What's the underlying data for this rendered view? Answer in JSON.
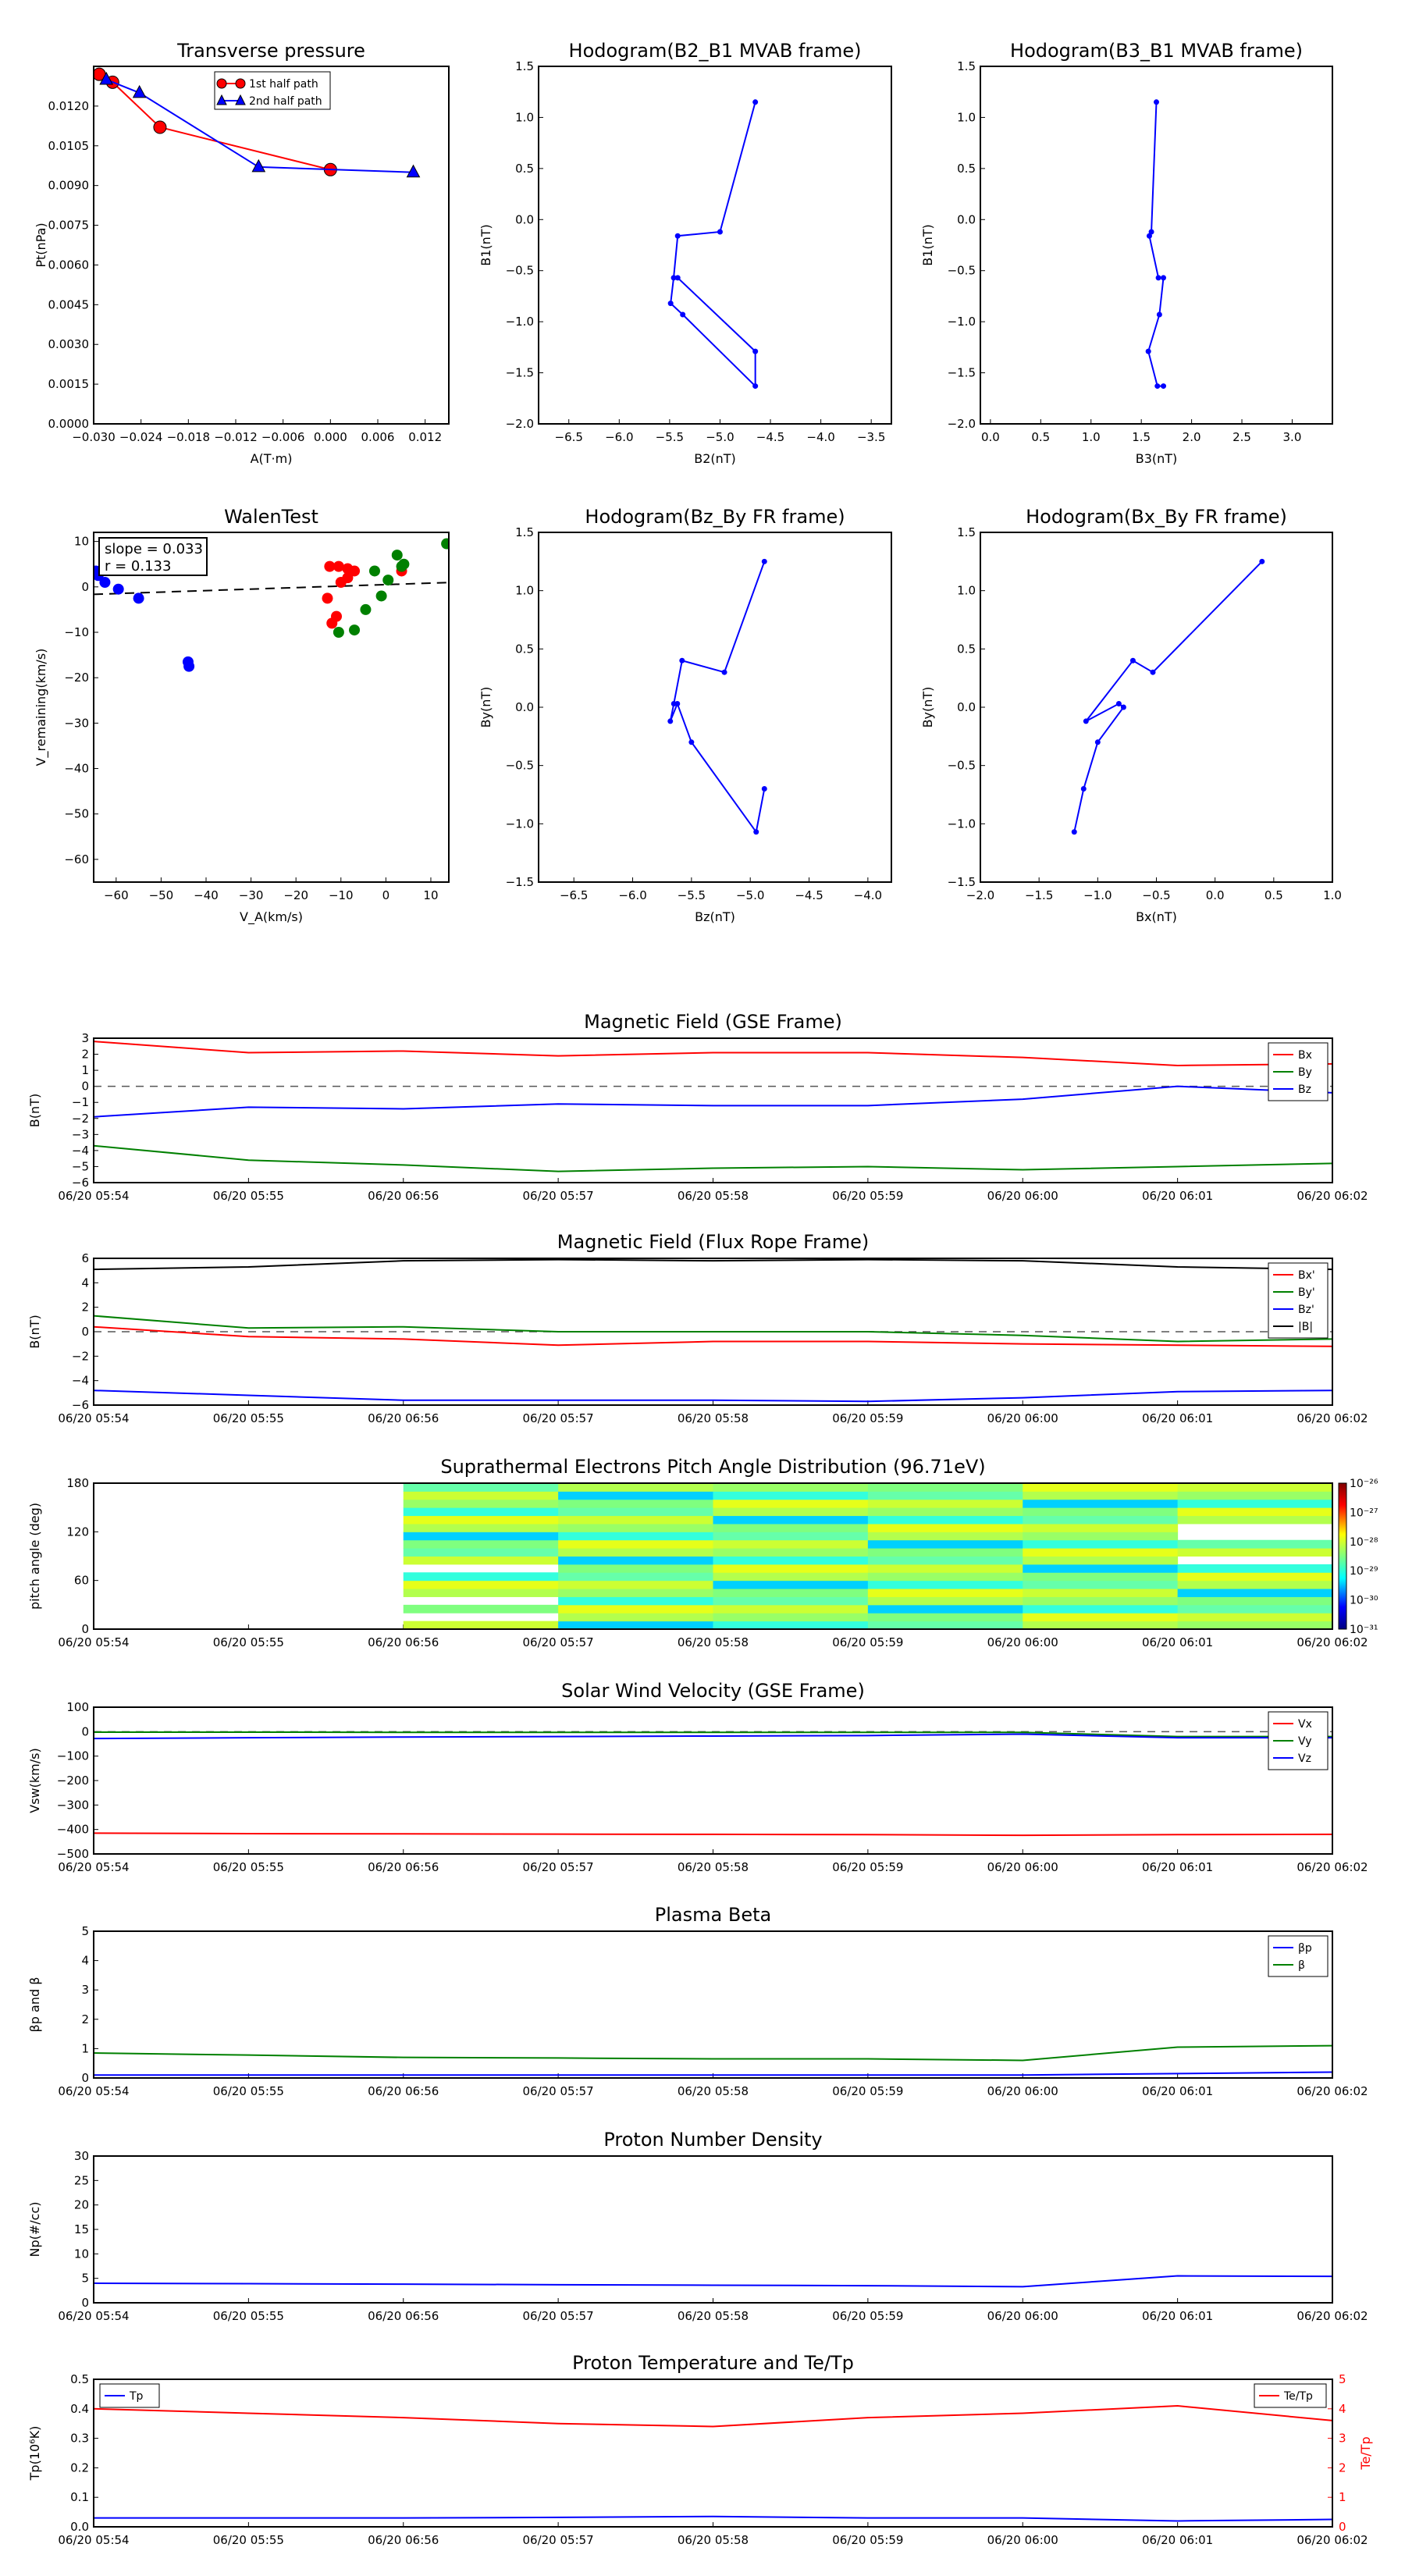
{
  "panels": [
    {
      "id": "tp",
      "title": "Transverse pressure",
      "xlabel": "A(T·m)",
      "ylabel": "Pt(nPa)",
      "xticks": [
        "−0.030",
        "−0.024",
        "−0.018",
        "−0.012",
        "−0.006",
        "0.000",
        "0.006",
        "0.012"
      ],
      "yticks": [
        "0.0000",
        "0.0015",
        "0.0030",
        "0.0045",
        "0.0060",
        "0.0075",
        "0.0090",
        "0.0105",
        "0.0120"
      ]
    },
    {
      "id": "h1",
      "title": "Hodogram(B2_B1 MVAB frame)",
      "xlabel": "B2(nT)",
      "ylabel": "B1(nT)",
      "xticks": [
        "−6.5",
        "−6.0",
        "−5.5",
        "−5.0",
        "−4.5",
        "−4.0",
        "−3.5"
      ],
      "yticks": [
        "−2.0",
        "−1.5",
        "−1.0",
        "−0.5",
        "0.0",
        "0.5",
        "1.0",
        "1.5"
      ]
    },
    {
      "id": "h2",
      "title": "Hodogram(B3_B1 MVAB frame)",
      "xlabel": "B3(nT)",
      "ylabel": "B1(nT)",
      "xticks": [
        "0.0",
        "0.5",
        "1.0",
        "1.5",
        "2.0",
        "2.5",
        "3.0"
      ],
      "yticks": [
        "−2.0",
        "−1.5",
        "−1.0",
        "−0.5",
        "0.0",
        "0.5",
        "1.0",
        "1.5"
      ]
    },
    {
      "id": "walen",
      "title": "WalenTest",
      "xlabel": "V_A(km/s)",
      "ylabel": "V_remaining(km/s)",
      "xticks": [
        "−60",
        "−50",
        "−40",
        "−30",
        "−20",
        "−10",
        "0",
        "10"
      ],
      "yticks": [
        "−60",
        "−50",
        "−40",
        "−30",
        "−20",
        "−10",
        "0",
        "10"
      ],
      "annotation": [
        "slope = 0.033",
        "r = 0.133"
      ]
    },
    {
      "id": "h3",
      "title": "Hodogram(Bz_By FR frame)",
      "xlabel": "Bz(nT)",
      "ylabel": "By(nT)",
      "xticks": [
        "−6.5",
        "−6.0",
        "−5.5",
        "−5.0",
        "−4.5",
        "−4.0"
      ],
      "yticks": [
        "−1.5",
        "−1.0",
        "−0.5",
        "0.0",
        "0.5",
        "1.0",
        "1.5"
      ]
    },
    {
      "id": "h4",
      "title": "Hodogram(Bx_By FR frame)",
      "xlabel": "Bx(nT)",
      "ylabel": "By(nT)",
      "xticks": [
        "−2.0",
        "−1.5",
        "−1.0",
        "−0.5",
        "0.0",
        "0.5",
        "1.0"
      ],
      "yticks": [
        "−1.5",
        "−1.0",
        "−0.5",
        "0.0",
        "0.5",
        "1.0",
        "1.5"
      ]
    },
    {
      "id": "bgse",
      "title": "Magnetic Field (GSE Frame)",
      "ylabel": "B(nT)",
      "yticks": [
        "−6",
        "−5",
        "−4",
        "−3",
        "−2",
        "−1",
        "0",
        "1",
        "2",
        "3"
      ],
      "legend": [
        "Bx",
        "By",
        "Bz"
      ]
    },
    {
      "id": "bfr",
      "title": "Magnetic Field (Flux Rope Frame)",
      "ylabel": "B(nT)",
      "yticks": [
        "−6",
        "−4",
        "−2",
        "0",
        "2",
        "4",
        "6"
      ],
      "legend": [
        "Bx'",
        "By'",
        "Bz'",
        "|B|"
      ]
    },
    {
      "id": "pad",
      "title": "Suprathermal Electrons Pitch Angle Distribution (96.71eV)",
      "ylabel": "pitch angle (deg)",
      "yticks": [
        "0",
        "60",
        "120",
        "180"
      ],
      "cbticks": [
        "10⁻³¹",
        "10⁻³⁰",
        "10⁻²⁹",
        "10⁻²⁸",
        "10⁻²⁷",
        "10⁻²⁶"
      ]
    },
    {
      "id": "vsw",
      "title": "Solar Wind Velocity (GSE Frame)",
      "ylabel": "Vsw(km/s)",
      "yticks": [
        "−500",
        "−400",
        "−300",
        "−200",
        "−100",
        "0",
        "100"
      ],
      "legend": [
        "Vx",
        "Vy",
        "Vz"
      ]
    },
    {
      "id": "beta",
      "title": "Plasma Beta",
      "ylabel": "βp and β",
      "yticks": [
        "0",
        "1",
        "2",
        "3",
        "4",
        "5"
      ],
      "legend": [
        "βp",
        "β"
      ]
    },
    {
      "id": "np",
      "title": "Proton Number Density",
      "ylabel": "Np(#/cc)",
      "yticks": [
        "0",
        "5",
        "10",
        "15",
        "20",
        "25",
        "30"
      ]
    },
    {
      "id": "temp",
      "title": "Proton Temperature and Te/Tp",
      "ylabel": "Tp(10⁶K)",
      "ylabel2": "Te/Tp",
      "yticks": [
        "0.0",
        "0.1",
        "0.2",
        "0.3",
        "0.4",
        "0.5"
      ],
      "yticks2": [
        "0",
        "1",
        "2",
        "3",
        "4",
        "5"
      ],
      "legend": [
        "Tp"
      ],
      "legend2": [
        "Te/Tp"
      ]
    }
  ],
  "time_ticks": [
    "06/20 05:54",
    "06/20 05:55",
    "06/20 06:56",
    "06/20 05:57",
    "06/20 05:58",
    "06/20 05:59",
    "06/20 06:00",
    "06/20 06:01",
    "06/20 06:02"
  ],
  "colors": {
    "red": "#ff0000",
    "green": "#008000",
    "blue": "#0000ff",
    "black": "#000000"
  },
  "chart_data": [
    {
      "type": "line",
      "title": "Transverse pressure",
      "xlim": [
        -0.03,
        0.015
      ],
      "ylim": [
        0,
        0.0135
      ],
      "series": [
        {
          "name": "1st half path",
          "x": [
            -0.0293,
            -0.0276,
            -0.0216,
            0.0
          ],
          "y": [
            0.0132,
            0.0129,
            0.0112,
            0.0096
          ]
        },
        {
          "name": "2nd half path",
          "x": [
            -0.0284,
            -0.0242,
            -0.0091,
            0.0105
          ],
          "y": [
            0.013,
            0.0125,
            0.0097,
            0.0095
          ]
        }
      ]
    },
    {
      "type": "line",
      "title": "Hodogram(B2_B1 MVAB frame)",
      "xlim": [
        -6.8,
        -3.3
      ],
      "ylim": [
        -2,
        1.5
      ],
      "series": [
        {
          "x": [
            -4.65,
            -5.0,
            -5.42,
            -5.46,
            -5.49,
            -5.37,
            -4.65,
            -4.65,
            -5.42
          ],
          "y": [
            1.15,
            -0.12,
            -0.16,
            -0.57,
            -0.82,
            -0.93,
            -1.63,
            -1.29,
            -0.57
          ]
        }
      ]
    },
    {
      "type": "line",
      "title": "Hodogram(B3_B1 MVAB frame)",
      "xlim": [
        -0.1,
        3.4
      ],
      "ylim": [
        -2,
        1.5
      ],
      "series": [
        {
          "x": [
            1.65,
            1.6,
            1.58,
            1.67,
            1.72,
            1.68,
            1.57,
            1.66,
            1.72
          ],
          "y": [
            1.15,
            -0.12,
            -0.16,
            -0.57,
            -0.57,
            -0.93,
            -1.29,
            -1.63,
            -1.63
          ]
        }
      ]
    },
    {
      "type": "scatter",
      "title": "WalenTest",
      "xlim": [
        -65,
        14
      ],
      "ylim": [
        -65,
        12
      ],
      "fit": {
        "slope": 0.033,
        "intercept": 0.5
      },
      "series": [
        {
          "x": [
            -64.5,
            -64,
            -62.5,
            -59.5,
            -55,
            -44,
            -43.8
          ],
          "y": [
            3.5,
            2.5,
            1,
            -0.5,
            -2.5,
            -16.5,
            -17.5
          ],
          "color": "#0000ff"
        },
        {
          "x": [
            -12.5,
            -10.5,
            -8.5,
            -7,
            -13,
            -11,
            -12,
            -10,
            -8.5,
            3.5
          ],
          "y": [
            4.5,
            4.5,
            4,
            3.5,
            -2.5,
            -6.5,
            -8,
            1,
            2,
            3.5
          ],
          "color": "#ff0000"
        },
        {
          "x": [
            -10.5,
            -7,
            -4.5,
            -2.5,
            -1,
            0.5,
            2.5,
            3.5,
            4,
            13.5
          ],
          "y": [
            -10,
            -9.5,
            -5,
            3.5,
            -2,
            1.5,
            7,
            4.5,
            5,
            9.5
          ],
          "color": "#008000"
        }
      ]
    },
    {
      "type": "line",
      "title": "Hodogram(Bz_By FR frame)",
      "xlim": [
        -6.8,
        -3.8
      ],
      "ylim": [
        -1.5,
        1.5
      ],
      "series": [
        {
          "x": [
            -4.88,
            -5.22,
            -5.58,
            -5.65,
            -5.68,
            -5.62,
            -5.5,
            -4.95,
            -4.88
          ],
          "y": [
            1.25,
            0.3,
            0.4,
            0.03,
            -0.12,
            0.03,
            -0.3,
            -1.07,
            -0.7
          ]
        }
      ]
    },
    {
      "type": "line",
      "title": "Hodogram(Bx_By FR frame)",
      "xlim": [
        -2,
        1
      ],
      "ylim": [
        -1.5,
        1.5
      ],
      "series": [
        {
          "x": [
            0.4,
            -0.53,
            -0.7,
            -1.1,
            -0.82,
            -0.78,
            -1.0,
            -1.12,
            -1.2
          ],
          "y": [
            1.25,
            0.3,
            0.4,
            -0.12,
            0.03,
            0.0,
            -0.3,
            -0.7,
            -1.07
          ]
        }
      ]
    },
    {
      "type": "line",
      "title": "Magnetic Field (GSE Frame)",
      "ylim": [
        -6,
        3
      ],
      "series": [
        {
          "name": "Bx",
          "values": [
            2.8,
            2.1,
            2.2,
            1.9,
            2.1,
            2.1,
            1.8,
            1.3,
            1.4
          ]
        },
        {
          "name": "By",
          "values": [
            -3.7,
            -4.6,
            -4.9,
            -5.3,
            -5.1,
            -5.0,
            -5.2,
            -5.0,
            -4.8
          ]
        },
        {
          "name": "Bz",
          "values": [
            -1.9,
            -1.3,
            -1.4,
            -1.1,
            -1.2,
            -1.2,
            -0.8,
            0.0,
            -0.4
          ]
        }
      ]
    },
    {
      "type": "line",
      "title": "Magnetic Field (Flux Rope Frame)",
      "ylim": [
        -6,
        6
      ],
      "series": [
        {
          "name": "Bx'",
          "values": [
            0.4,
            -0.4,
            -0.6,
            -1.1,
            -0.8,
            -0.8,
            -1.0,
            -1.1,
            -1.2
          ]
        },
        {
          "name": "By'",
          "values": [
            1.3,
            0.3,
            0.4,
            0.0,
            0.0,
            0.0,
            -0.3,
            -0.8,
            -0.6
          ]
        },
        {
          "name": "Bz'",
          "values": [
            -4.8,
            -5.2,
            -5.6,
            -5.6,
            -5.6,
            -5.7,
            -5.4,
            -4.9,
            -4.8
          ]
        },
        {
          "name": "|B|",
          "values": [
            5.1,
            5.3,
            5.8,
            5.9,
            5.8,
            5.9,
            5.8,
            5.3,
            5.1
          ]
        }
      ]
    },
    {
      "type": "heatmap",
      "title": "Suprathermal Electrons Pitch Angle Distribution (96.71eV)",
      "ylim": [
        0,
        180
      ]
    },
    {
      "type": "line",
      "title": "Solar Wind Velocity (GSE Frame)",
      "ylim": [
        -500,
        100
      ],
      "series": [
        {
          "name": "Vx",
          "values": [
            -415,
            -417,
            -418,
            -419,
            -420,
            -421,
            -424,
            -421,
            -420
          ]
        },
        {
          "name": "Vy",
          "values": [
            -2,
            -2,
            -3,
            -3,
            -3,
            -3,
            -3,
            -20,
            -20
          ]
        },
        {
          "name": "Vz",
          "values": [
            -28,
            -25,
            -22,
            -20,
            -18,
            -16,
            -10,
            -25,
            -25
          ]
        }
      ]
    },
    {
      "type": "line",
      "title": "Plasma Beta",
      "ylim": [
        0,
        5
      ],
      "series": [
        {
          "name": "βp",
          "values": [
            0.1,
            0.1,
            0.1,
            0.1,
            0.1,
            0.1,
            0.1,
            0.15,
            0.2
          ]
        },
        {
          "name": "β",
          "values": [
            0.85,
            0.78,
            0.7,
            0.68,
            0.65,
            0.65,
            0.6,
            1.05,
            1.1
          ]
        }
      ]
    },
    {
      "type": "line",
      "title": "Proton Number Density",
      "ylim": [
        0,
        30
      ],
      "series": [
        {
          "name": "Np",
          "values": [
            4.0,
            3.9,
            3.8,
            3.7,
            3.6,
            3.5,
            3.3,
            5.5,
            5.4
          ]
        }
      ]
    },
    {
      "type": "line",
      "title": "Proton Temperature and Te/Tp",
      "ylim": [
        0,
        0.5
      ],
      "ylim2": [
        0,
        5
      ],
      "series": [
        {
          "name": "Tp",
          "values": [
            0.03,
            0.03,
            0.03,
            0.032,
            0.035,
            0.03,
            0.03,
            0.02,
            0.025
          ]
        },
        {
          "name": "Te/Tp",
          "axis": "right",
          "values": [
            4.0,
            3.85,
            3.7,
            3.5,
            3.4,
            3.7,
            3.85,
            4.1,
            3.6
          ]
        }
      ]
    }
  ]
}
